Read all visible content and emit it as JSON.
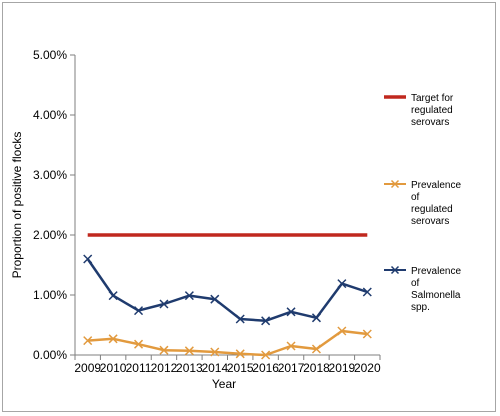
{
  "chart_data": {
    "type": "line",
    "x": [
      "2009",
      "2010",
      "2011",
      "2012",
      "2013",
      "2014",
      "2015",
      "2016",
      "2017",
      "2018",
      "2019",
      "2020"
    ],
    "xlabel": "Year",
    "ylabel": "Proportion of positive flocks",
    "ylim": [
      0,
      5
    ],
    "yticks": [
      "0.00%",
      "1.00%",
      "2.00%",
      "3.00%",
      "4.00%",
      "5.00%"
    ],
    "grid": false,
    "legend_position": "right",
    "series": [
      {
        "name": "Target for regulated serovars",
        "legend_lines": [
          "Target for",
          "regulated",
          "serovars"
        ],
        "color": "#c0281e",
        "marker": "none",
        "values": [
          2,
          2,
          2,
          2,
          2,
          2,
          2,
          2,
          2,
          2,
          2,
          2
        ]
      },
      {
        "name": "Prevalence of regulated serovars",
        "legend_lines": [
          "Prevalence",
          "of",
          "regulated",
          "serovars"
        ],
        "color": "#e29a3e",
        "marker": "x",
        "values": [
          0.24,
          0.27,
          0.18,
          0.08,
          0.07,
          0.05,
          0.02,
          0.0,
          0.15,
          0.1,
          0.4,
          0.35
        ]
      },
      {
        "name": "Prevalence of Salmonella spp.",
        "legend_lines": [
          "Prevalence",
          "of",
          "Salmonella",
          "spp."
        ],
        "color": "#1f3b6e",
        "marker": "x",
        "values": [
          1.6,
          0.99,
          0.74,
          0.85,
          0.99,
          0.93,
          0.6,
          0.57,
          0.72,
          0.62,
          1.19,
          1.05
        ]
      }
    ]
  }
}
